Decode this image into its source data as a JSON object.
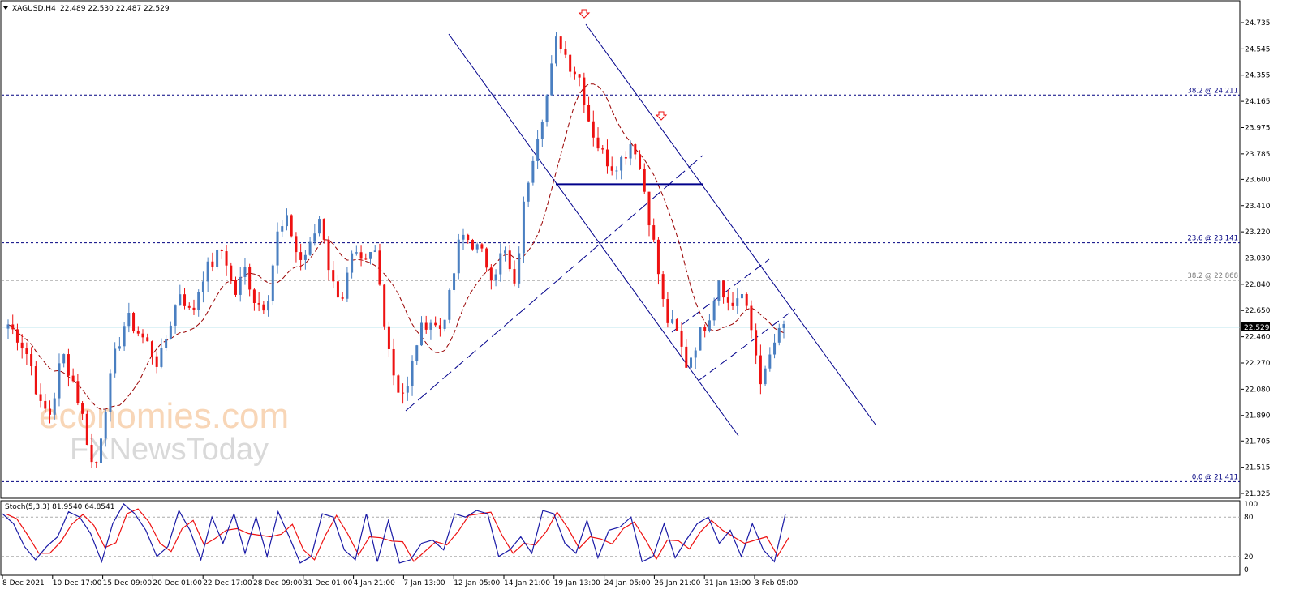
{
  "header": {
    "symbol": "XAGUSD,H4",
    "ohlc": "22.489 22.530 22.487 22.529"
  },
  "stoch_header": "Stoch(5,3,3) 81.9540 64.8541",
  "watermark": {
    "line1": "economies.com",
    "line2": "FXNewsToday"
  },
  "current_price_label": "22.529",
  "fib_levels": [
    {
      "label": "38.2 @ 24.211",
      "price": 24.211,
      "style": "navy"
    },
    {
      "label": "23.6 @ 23.141",
      "price": 23.141,
      "style": "navy"
    },
    {
      "label": "38.2 @ 22.868",
      "price": 22.868,
      "style": "gray"
    },
    {
      "label": "0.0 @ 21.411",
      "price": 21.411,
      "style": "navy"
    }
  ],
  "colors": {
    "bull": "#4a7fc1",
    "bear": "#ee1111",
    "ma": "#990000",
    "trend": "#00008b",
    "fib": "#000080",
    "stoch_main": "#1a1aa6",
    "stoch_signal": "#ee1111",
    "price_line": "#a7dbe8"
  },
  "chart_data": {
    "type": "candlestick",
    "symbol": "XAGUSD",
    "timeframe": "H4",
    "y_ticks": [
      "24.735",
      "24.545",
      "24.355",
      "24.165",
      "23.975",
      "23.785",
      "23.600",
      "23.410",
      "23.220",
      "23.030",
      "22.840",
      "22.650",
      "22.460",
      "22.270",
      "22.080",
      "21.890",
      "21.705",
      "21.515",
      "21.325"
    ],
    "y_range": [
      21.325,
      24.735
    ],
    "x_labels": [
      "8 Dec 2021",
      "10 Dec 17:00",
      "15 Dec 09:00",
      "20 Dec 01:00",
      "22 Dec 17:00",
      "28 Dec 09:00",
      "31 Dec 01:00",
      "4 Jan 21:00",
      "7 Jan 13:00",
      "12 Jan 05:00",
      "14 Jan 21:00",
      "19 Jan 13:00",
      "24 Jan 05:00",
      "26 Jan 21:00",
      "31 Jan 13:00",
      "3 Feb 05:00"
    ],
    "close_path": [
      22.55,
      22.45,
      22.3,
      21.95,
      21.9,
      22.35,
      22.15,
      21.85,
      21.45,
      21.95,
      22.35,
      22.6,
      22.5,
      22.4,
      22.25,
      22.55,
      22.8,
      22.6,
      22.9,
      23.0,
      23.1,
      22.75,
      22.95,
      22.7,
      22.7,
      23.2,
      23.3,
      23.0,
      23.1,
      23.35,
      22.85,
      22.75,
      23.05,
      22.95,
      23.1,
      22.55,
      22.1,
      22.05,
      22.45,
      22.6,
      22.5,
      22.75,
      23.2,
      23.15,
      23.05,
      22.9,
      23.1,
      22.8,
      23.5,
      23.9,
      24.2,
      24.65,
      24.45,
      24.35,
      24.0,
      23.8,
      23.7,
      23.75,
      23.9,
      23.55,
      23.1,
      22.6,
      22.5,
      22.25,
      22.45,
      22.6,
      22.9,
      22.65,
      22.8,
      22.5,
      22.1,
      22.4,
      22.53
    ],
    "stochastic": {
      "name": "Stoch(5,3,3)",
      "main": 81.954,
      "signal": 64.8541,
      "levels": [
        80,
        20
      ],
      "range": [
        0,
        100
      ],
      "main_path": [
        85,
        70,
        35,
        15,
        35,
        50,
        88,
        80,
        55,
        12,
        70,
        100,
        85,
        60,
        20,
        35,
        90,
        60,
        15,
        80,
        40,
        85,
        25,
        80,
        20,
        88,
        50,
        10,
        20,
        85,
        80,
        30,
        15,
        85,
        12,
        75,
        10,
        15,
        40,
        45,
        30,
        85,
        80,
        90,
        85,
        20,
        30,
        50,
        25,
        90,
        85,
        40,
        25,
        75,
        18,
        60,
        65,
        80,
        12,
        20,
        70,
        18,
        45,
        70,
        80,
        40,
        60,
        20,
        70,
        30,
        12,
        85
      ]
    },
    "horizontal_levels": [
      24.211,
      23.141,
      22.868,
      21.411,
      23.565
    ],
    "current_price": 22.529
  }
}
